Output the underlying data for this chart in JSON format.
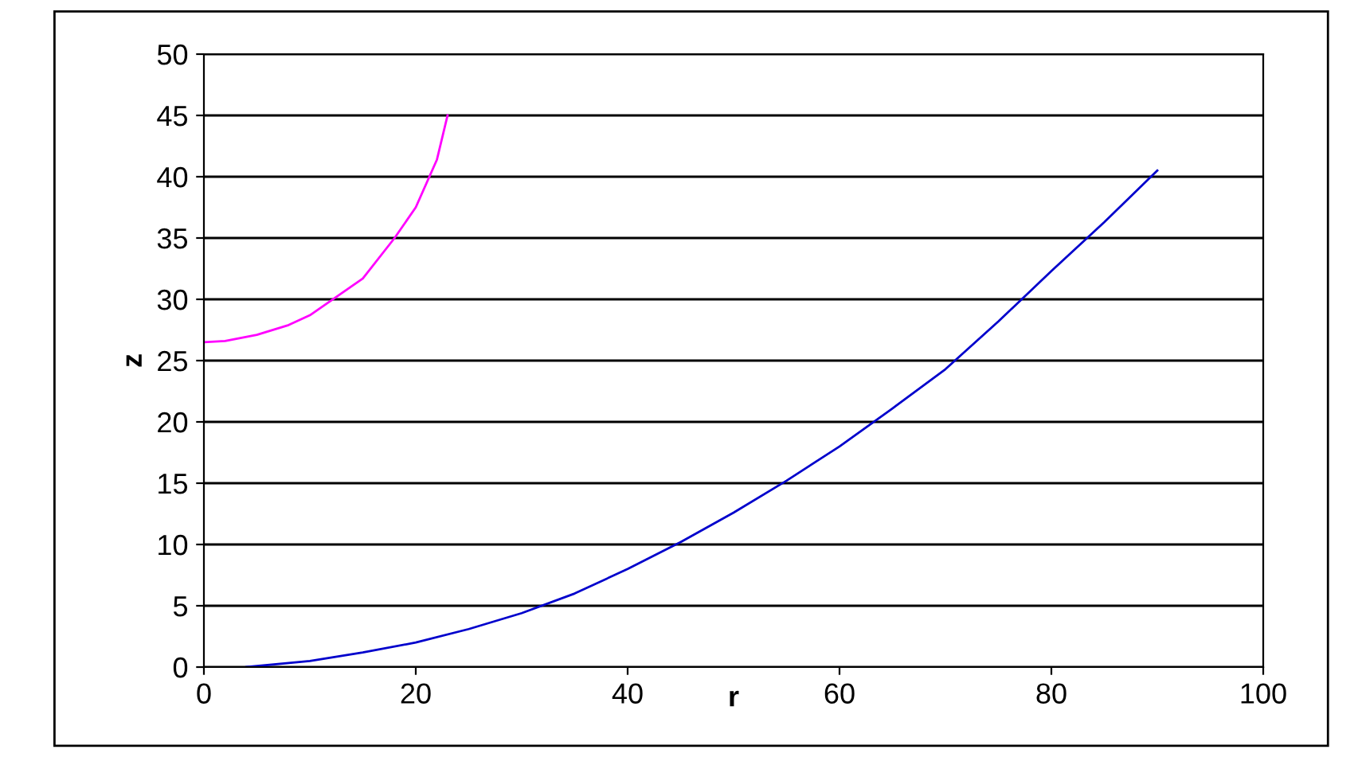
{
  "chart_data": {
    "type": "line",
    "xlabel": "r",
    "ylabel": "z",
    "xlim": [
      0,
      100
    ],
    "ylim": [
      0,
      50
    ],
    "xticks": [
      0,
      20,
      40,
      60,
      80,
      100
    ],
    "yticks": [
      0,
      5,
      10,
      15,
      20,
      25,
      30,
      35,
      40,
      45,
      50
    ],
    "grid": "y",
    "marker": "none",
    "line_style": "solid",
    "series": [
      {
        "color": "#ff00ff",
        "x": [
          0,
          2,
          5,
          8,
          10,
          12,
          15,
          18,
          20,
          22,
          23
        ],
        "values": [
          26.5,
          26.6,
          27.1,
          27.9,
          28.7,
          29.9,
          31.7,
          35,
          37.5,
          41.4,
          45
        ]
      },
      {
        "color": "#0000cc",
        "x": [
          4,
          10,
          15,
          20,
          25,
          30,
          35,
          40,
          45,
          50,
          55,
          60,
          65,
          70,
          75,
          80,
          85,
          90
        ],
        "values": [
          0,
          0.5,
          1.2,
          2,
          3.1,
          4.4,
          6,
          8,
          10.2,
          12.6,
          15.2,
          18,
          21.1,
          24.3,
          28.2,
          32.3,
          36.3,
          40.5
        ]
      }
    ]
  }
}
